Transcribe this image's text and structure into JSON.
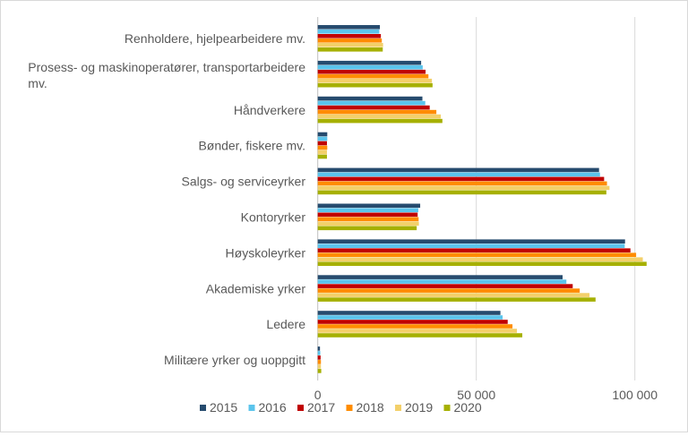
{
  "chart_data": {
    "type": "bar",
    "orientation": "horizontal",
    "categories": [
      "Renholdere, hjelpearbeidere mv.",
      "Prosess- og maskinoperatører, transportarbeidere mv.",
      "Håndverkere",
      "Bønder, fiskere mv.",
      "Salgs- og serviceyrker",
      "Kontoryrker",
      "Høyskoleyrker",
      "Akademiske yrker",
      "Ledere",
      "Militære yrker og uoppgitt"
    ],
    "series": [
      {
        "name": "2015",
        "color": "#264b6e",
        "values": [
          19600,
          32600,
          33000,
          3000,
          88700,
          32300,
          96900,
          77200,
          57600,
          700
        ]
      },
      {
        "name": "2016",
        "color": "#5bc4ec",
        "values": [
          19400,
          33100,
          33900,
          3000,
          89000,
          31700,
          96800,
          78400,
          58300,
          800
        ]
      },
      {
        "name": "2017",
        "color": "#c00000",
        "values": [
          19900,
          34000,
          35300,
          2900,
          90300,
          31500,
          98600,
          80400,
          59900,
          900
        ]
      },
      {
        "name": "2018",
        "color": "#ff8c00",
        "values": [
          20200,
          34900,
          37400,
          3000,
          91200,
          31800,
          100400,
          82600,
          61400,
          1000
        ]
      },
      {
        "name": "2019",
        "color": "#f3d06a",
        "values": [
          20600,
          36000,
          38800,
          2900,
          92000,
          31900,
          102500,
          85700,
          62800,
          1000
        ]
      },
      {
        "name": "2020",
        "color": "#a6b000",
        "values": [
          20500,
          36200,
          39300,
          2900,
          91000,
          31200,
          103700,
          87600,
          64500,
          1100
        ]
      }
    ],
    "xticks": [
      0,
      50000,
      100000
    ],
    "xtick_labels": [
      "0",
      "50 000",
      "100 000"
    ],
    "xlim": [
      0,
      108000
    ],
    "grid": true,
    "legend_position": "bottom",
    "title": "",
    "xlabel": "",
    "ylabel": ""
  }
}
